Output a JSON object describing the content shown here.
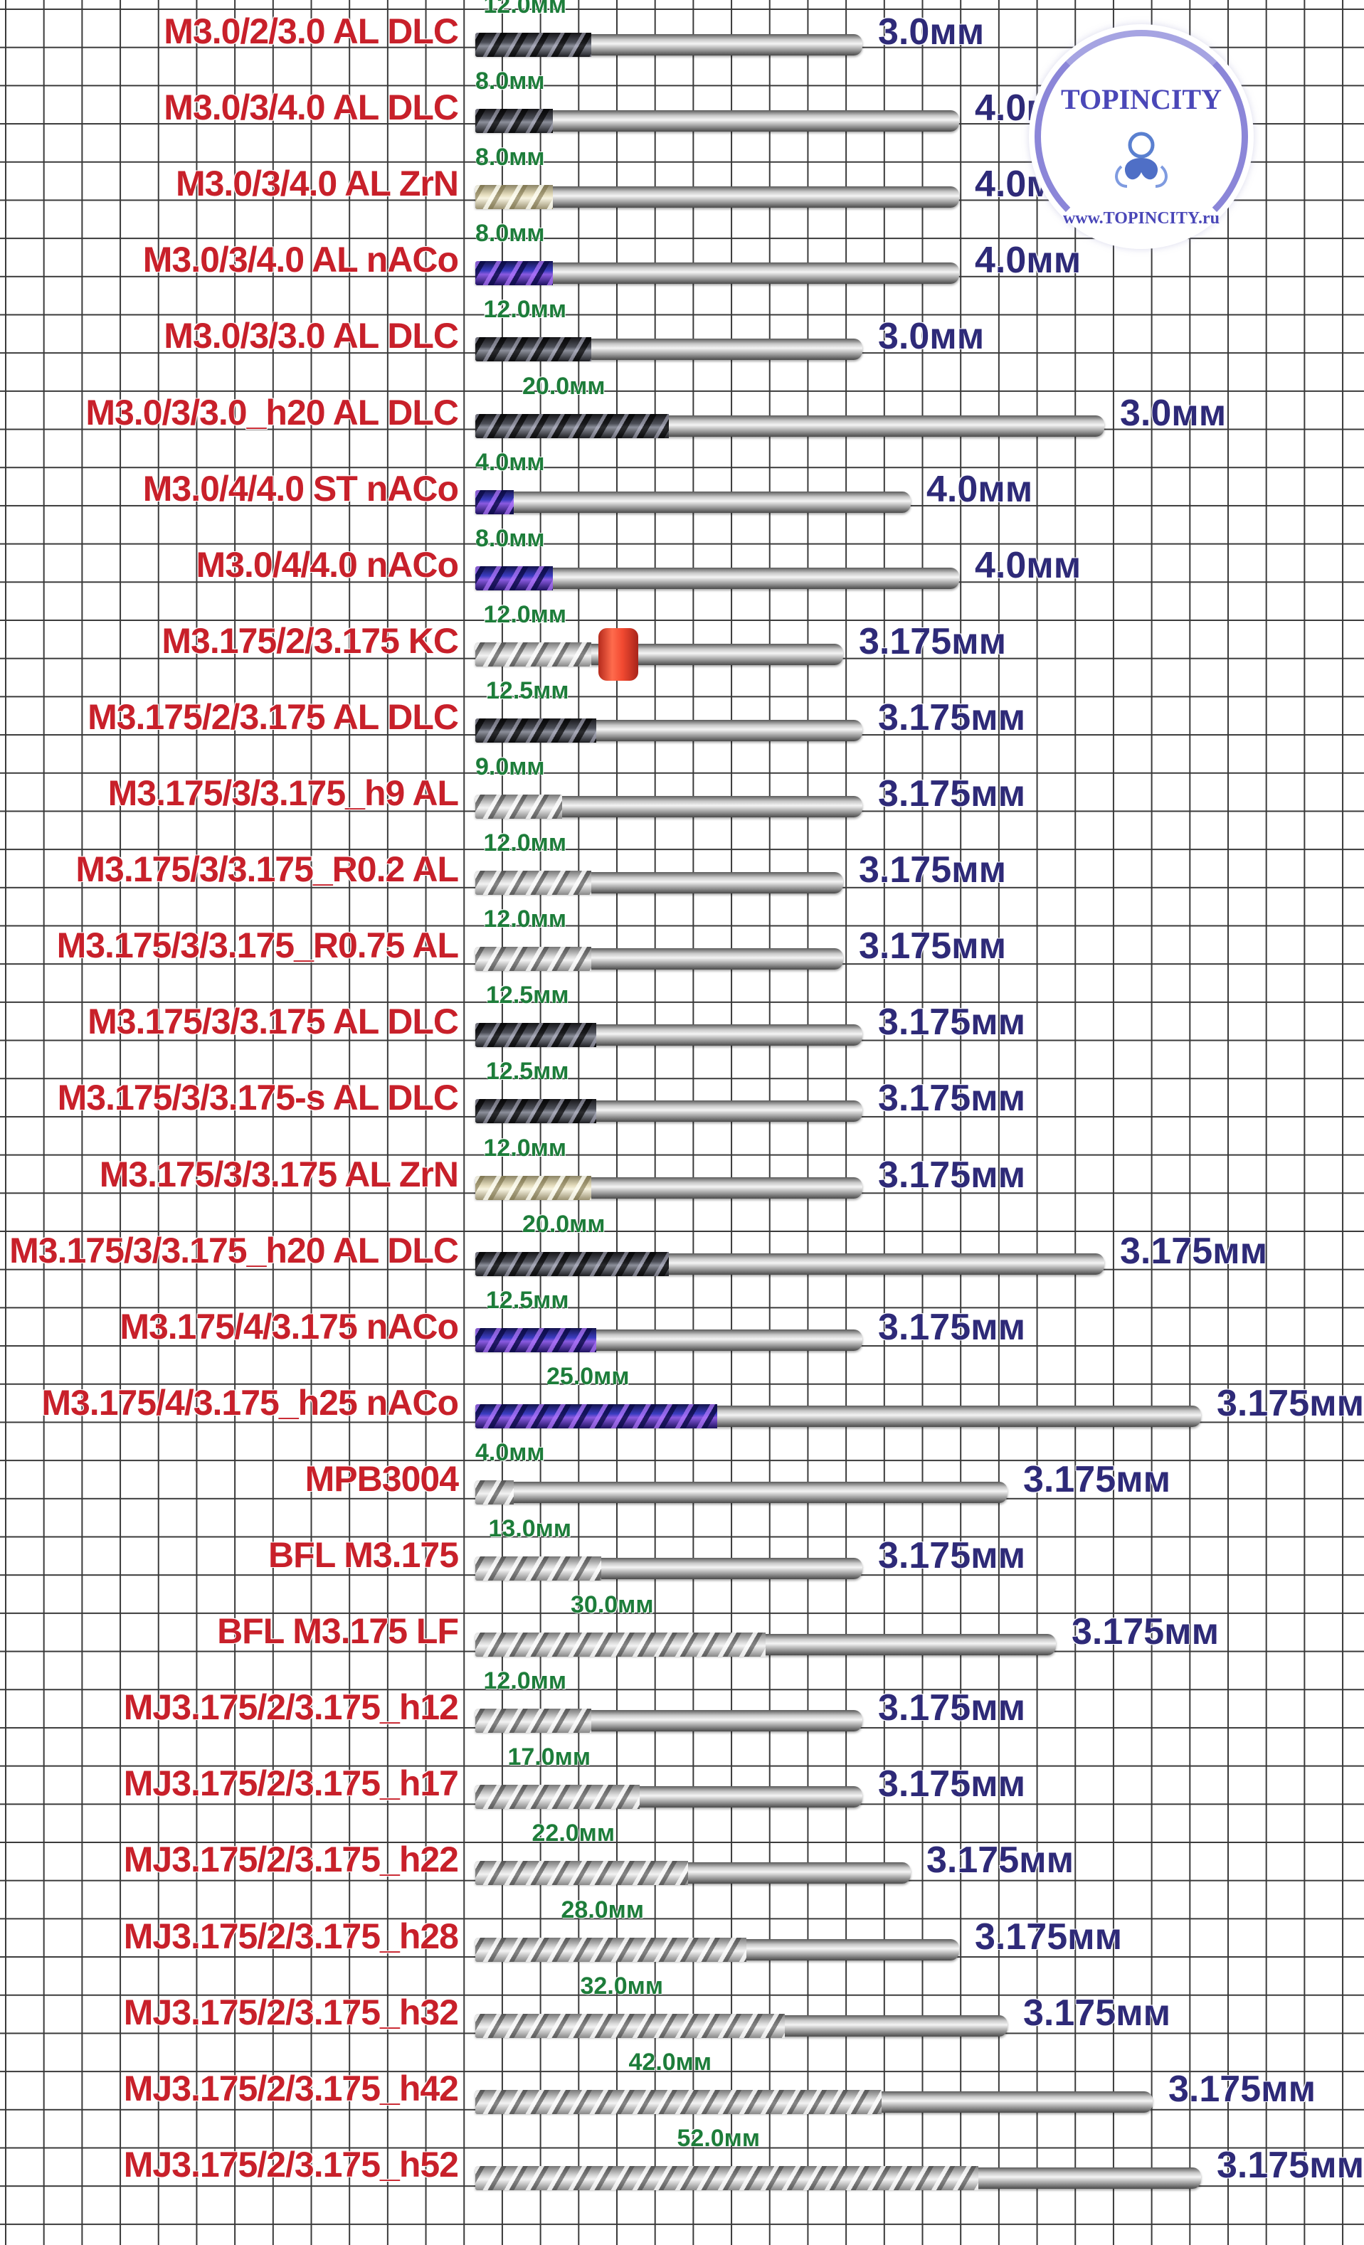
{
  "logo": {
    "title": "TOPINCITY",
    "url": "www.TOPINCITY.ru",
    "colors": {
      "primary": "#4a47b8",
      "arc": "#8b86d8"
    },
    "icon": "topincity-emblem-icon"
  },
  "colors": {
    "label": "#c8202a",
    "flute_length": "#1d7d3a",
    "shank_diameter": "#2e2a78",
    "grid": "#3a3a3a"
  },
  "tools": [
    {
      "label": "M3.0/2/3.0 AL DLC",
      "flute_length": "12.0мм",
      "shank_diameter": "3.0мм",
      "coating": "dlc",
      "flute_mm": 12,
      "total_mm": 40
    },
    {
      "label": "M3.0/3/4.0 AL DLC",
      "flute_length": "8.0мм",
      "shank_diameter": "4.0мм",
      "coating": "dlc",
      "flute_mm": 8,
      "total_mm": 50
    },
    {
      "label": "M3.0/3/4.0 AL ZrN",
      "flute_length": "8.0мм",
      "shank_diameter": "4.0мм",
      "coating": "zrn",
      "flute_mm": 8,
      "total_mm": 50
    },
    {
      "label": "M3.0/3/4.0 AL nACo",
      "flute_length": "8.0мм",
      "shank_diameter": "4.0мм",
      "coating": "naco",
      "flute_mm": 8,
      "total_mm": 50
    },
    {
      "label": "M3.0/3/3.0 AL DLC",
      "flute_length": "12.0мм",
      "shank_diameter": "3.0мм",
      "coating": "dlc",
      "flute_mm": 12,
      "total_mm": 40
    },
    {
      "label": "M3.0/3/3.0_h20 AL DLC",
      "flute_length": "20.0мм",
      "shank_diameter": "3.0мм",
      "coating": "dlc",
      "flute_mm": 20,
      "total_mm": 65
    },
    {
      "label": "M3.0/4/4.0 ST nACo",
      "flute_length": "4.0мм",
      "shank_diameter": "4.0мм",
      "coating": "naco",
      "flute_mm": 4,
      "total_mm": 45
    },
    {
      "label": "M3.0/4/4.0 nACo",
      "flute_length": "8.0мм",
      "shank_diameter": "4.0мм",
      "coating": "naco",
      "flute_mm": 8,
      "total_mm": 50
    },
    {
      "label": "M3.175/2/3.175 KC",
      "flute_length": "12.0мм",
      "shank_diameter": "3.175мм",
      "coating": "silver",
      "flute_mm": 12,
      "total_mm": 38,
      "ring": true
    },
    {
      "label": "M3.175/2/3.175 AL DLC",
      "flute_length": "12.5мм",
      "shank_diameter": "3.175мм",
      "coating": "dlc",
      "flute_mm": 12.5,
      "total_mm": 40
    },
    {
      "label": "M3.175/3/3.175_h9 AL",
      "flute_length": "9.0мм",
      "shank_diameter": "3.175мм",
      "coating": "silver",
      "flute_mm": 9,
      "total_mm": 40
    },
    {
      "label": "M3.175/3/3.175_R0.2 AL",
      "flute_length": "12.0мм",
      "shank_diameter": "3.175мм",
      "coating": "silver",
      "flute_mm": 12,
      "total_mm": 38
    },
    {
      "label": "M3.175/3/3.175_R0.75 AL",
      "flute_length": "12.0мм",
      "shank_diameter": "3.175мм",
      "coating": "silver",
      "flute_mm": 12,
      "total_mm": 38
    },
    {
      "label": "M3.175/3/3.175 AL DLC",
      "flute_length": "12.5мм",
      "shank_diameter": "3.175мм",
      "coating": "dlc",
      "flute_mm": 12.5,
      "total_mm": 40
    },
    {
      "label": "M3.175/3/3.175-s AL DLC",
      "flute_length": "12.5мм",
      "shank_diameter": "3.175мм",
      "coating": "dlc",
      "flute_mm": 12.5,
      "total_mm": 40
    },
    {
      "label": "M3.175/3/3.175 AL ZrN",
      "flute_length": "12.0мм",
      "shank_diameter": "3.175мм",
      "coating": "zrn",
      "flute_mm": 12,
      "total_mm": 40
    },
    {
      "label": "M3.175/3/3.175_h20 AL DLC",
      "flute_length": "20.0мм",
      "shank_diameter": "3.175мм",
      "coating": "dlc",
      "flute_mm": 20,
      "total_mm": 65
    },
    {
      "label": "M3.175/4/3.175 nACo",
      "flute_length": "12.5мм",
      "shank_diameter": "3.175мм",
      "coating": "naco",
      "flute_mm": 12.5,
      "total_mm": 40
    },
    {
      "label": "M3.175/4/3.175_h25 nACo",
      "flute_length": "25.0мм",
      "shank_diameter": "3.175мм",
      "coating": "naco",
      "flute_mm": 25,
      "total_mm": 75
    },
    {
      "label": "MPB3004",
      "flute_length": "4.0мм",
      "shank_diameter": "3.175мм",
      "coating": "silver",
      "flute_mm": 4,
      "total_mm": 55
    },
    {
      "label": "BFL M3.175",
      "flute_length": "13.0мм",
      "shank_diameter": "3.175мм",
      "coating": "silver",
      "flute_mm": 13,
      "total_mm": 40
    },
    {
      "label": "BFL M3.175 LF",
      "flute_length": "30.0мм",
      "shank_diameter": "3.175мм",
      "coating": "silver",
      "flute_mm": 30,
      "total_mm": 60
    },
    {
      "label": "MJ3.175/2/3.175_h12",
      "flute_length": "12.0мм",
      "shank_diameter": "3.175мм",
      "coating": "silver",
      "flute_mm": 12,
      "total_mm": 40
    },
    {
      "label": "MJ3.175/2/3.175_h17",
      "flute_length": "17.0мм",
      "shank_diameter": "3.175мм",
      "coating": "silver",
      "flute_mm": 17,
      "total_mm": 40
    },
    {
      "label": "MJ3.175/2/3.175_h22",
      "flute_length": "22.0мм",
      "shank_diameter": "3.175мм",
      "coating": "silver",
      "flute_mm": 22,
      "total_mm": 45
    },
    {
      "label": "MJ3.175/2/3.175_h28",
      "flute_length": "28.0мм",
      "shank_diameter": "3.175мм",
      "coating": "silver",
      "flute_mm": 28,
      "total_mm": 50
    },
    {
      "label": "MJ3.175/2/3.175_h32",
      "flute_length": "32.0мм",
      "shank_diameter": "3.175мм",
      "coating": "silver",
      "flute_mm": 32,
      "total_mm": 55
    },
    {
      "label": "MJ3.175/2/3.175_h42",
      "flute_length": "42.0мм",
      "shank_diameter": "3.175мм",
      "coating": "silver",
      "flute_mm": 42,
      "total_mm": 70
    },
    {
      "label": "MJ3.175/2/3.175_h52",
      "flute_length": "52.0мм",
      "shank_diameter": "3.175мм",
      "coating": "silver",
      "flute_mm": 52,
      "total_mm": 75
    }
  ]
}
